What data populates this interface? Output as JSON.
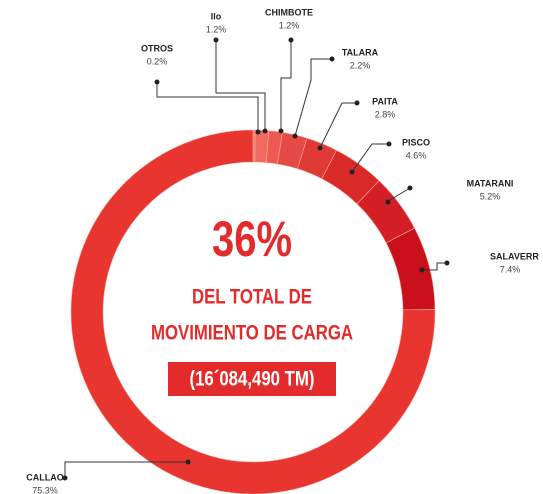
{
  "chart_data": {
    "type": "donut",
    "categories": [
      "OTROS",
      "Ilo",
      "CHIMBOTE",
      "TALARA",
      "PAITA",
      "PISCO",
      "MATARANI",
      "SALAVERR",
      "CALLAO"
    ],
    "values": [
      0.2,
      1.2,
      1.2,
      2.2,
      2.8,
      4.6,
      5.2,
      7.4,
      75.3
    ],
    "value_labels": [
      "0.2%",
      "1.2%",
      "1.2%",
      "2.2%",
      "2.8%",
      "4.6%",
      "5.2%",
      "7.4%",
      "75.3%"
    ],
    "colors": [
      "#f07a70",
      "#ee6a62",
      "#ec5a52",
      "#e64a44",
      "#e03a36",
      "#d92a2a",
      "#d41f24",
      "#c9111c",
      "#e8352f"
    ],
    "annotations": [
      "36%",
      "DEL TOTAL DE",
      "MOVIMIENTO DE CARGA",
      "(16´084,490 TM)"
    ]
  }
}
